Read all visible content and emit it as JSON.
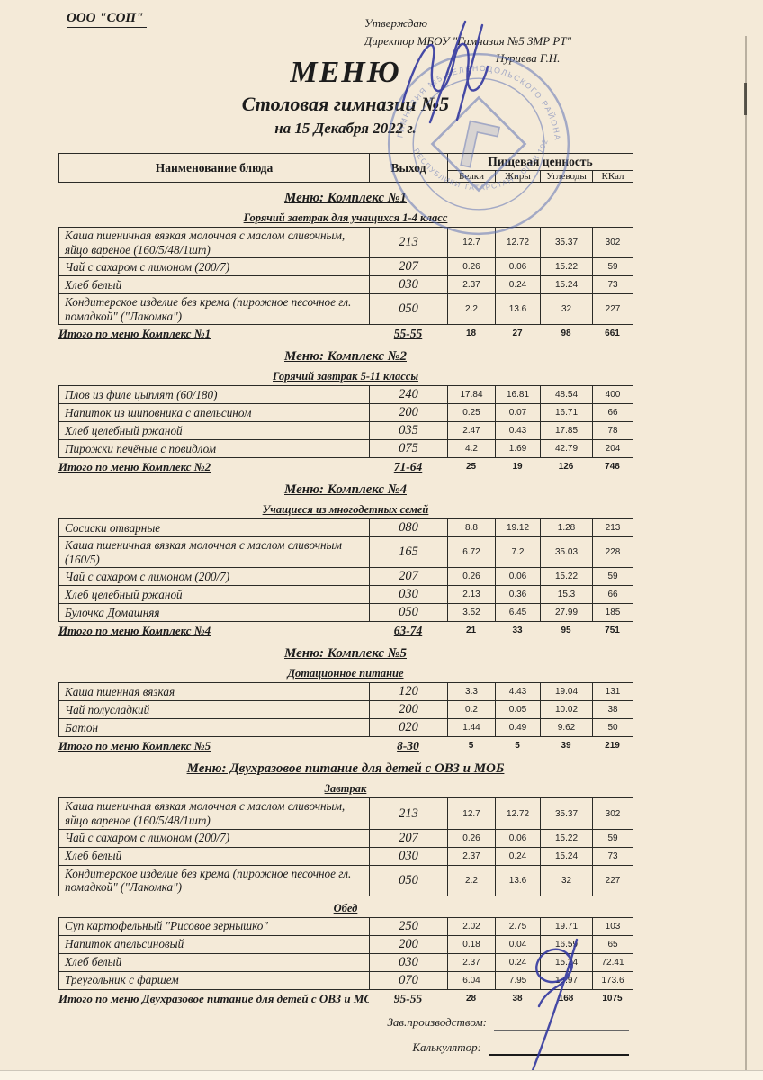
{
  "page": {
    "org": "ООО \"СОП\"",
    "approve_line1": "Утверждаю",
    "approve_line2": "Директор МБОУ \"Гимназия №5 ЗМР РТ\"",
    "approve_name": "Нуриева Г.Н.",
    "title": "МЕНЮ",
    "subtitle": "Столовая гимназии №5",
    "date_line": "на 15 Декабря 2022 г."
  },
  "table_header": {
    "name": "Наименование блюда",
    "output": "Выход",
    "nutrition": "Пищевая ценность",
    "cols": [
      "Белки",
      "Жиры",
      "Углеводы",
      "ККал"
    ]
  },
  "sections": [
    {
      "title": "Меню: Комплекс №1",
      "groups": [
        {
          "subtitle": "Горячий завтрак для учащихся 1-4 класс",
          "rows": [
            {
              "name": "Каша пшеничная вязкая молочная с маслом сливочным, яйцо вареное  (160/5/48/1шт)",
              "output": "213",
              "values": [
                "12.7",
                "12.72",
                "35.37",
                "302"
              ]
            },
            {
              "name": "Чай с сахаром с лимоном (200/7)",
              "output": "207",
              "values": [
                "0.26",
                "0.06",
                "15.22",
                "59"
              ]
            },
            {
              "name": "Хлеб белый",
              "output": "030",
              "values": [
                "2.37",
                "0.24",
                "15.24",
                "73"
              ]
            },
            {
              "name": "Кондитерское изделие без крема (пирожное песочное гл. помадкой\" (\"Лакомка\")",
              "output": "050",
              "values": [
                "2.2",
                "13.6",
                "32",
                "227"
              ]
            }
          ]
        }
      ],
      "total": {
        "label": "Итого по меню Комплекс №1",
        "output": "55-55",
        "values": [
          "18",
          "27",
          "98",
          "661"
        ]
      }
    },
    {
      "title": "Меню: Комплекс №2",
      "groups": [
        {
          "subtitle": "Горячий завтрак 5-11 классы",
          "rows": [
            {
              "name": "Плов из филе цыплят (60/180)",
              "output": "240",
              "values": [
                "17.84",
                "16.81",
                "48.54",
                "400"
              ]
            },
            {
              "name": "Напиток из шиповника с апельсином",
              "output": "200",
              "values": [
                "0.25",
                "0.07",
                "16.71",
                "66"
              ]
            },
            {
              "name": "Хлеб  целебный ржаной",
              "output": "035",
              "values": [
                "2.47",
                "0.43",
                "17.85",
                "78"
              ]
            },
            {
              "name": "Пирожки печёные с повидлом",
              "output": "075",
              "values": [
                "4.2",
                "1.69",
                "42.79",
                "204"
              ]
            }
          ]
        }
      ],
      "total": {
        "label": "Итого по меню Комплекс №2",
        "output": "71-64",
        "values": [
          "25",
          "19",
          "126",
          "748"
        ]
      }
    },
    {
      "title": "Меню: Комплекс №4",
      "groups": [
        {
          "subtitle": "Учащиеся из многодетных семей",
          "rows": [
            {
              "name": "Сосиски  отварные",
              "output": "080",
              "values": [
                "8.8",
                "19.12",
                "1.28",
                "213"
              ]
            },
            {
              "name": "Каша пшеничная вязкая молочная с маслом сливочным (160/5)",
              "output": "165",
              "values": [
                "6.72",
                "7.2",
                "35.03",
                "228"
              ]
            },
            {
              "name": "Чай с сахаром с лимоном (200/7)",
              "output": "207",
              "values": [
                "0.26",
                "0.06",
                "15.22",
                "59"
              ]
            },
            {
              "name": "Хлеб  целебный ржаной",
              "output": "030",
              "values": [
                "2.13",
                "0.36",
                "15.3",
                "66"
              ]
            },
            {
              "name": "Булочка Домашняя",
              "output": "050",
              "values": [
                "3.52",
                "6.45",
                "27.99",
                "185"
              ]
            }
          ]
        }
      ],
      "total": {
        "label": "Итого по меню Комплекс №4",
        "output": "63-74",
        "values": [
          "21",
          "33",
          "95",
          "751"
        ]
      }
    },
    {
      "title": "Меню: Комплекс №5",
      "groups": [
        {
          "subtitle": "Дотационное питание",
          "rows": [
            {
              "name": "Каша пшенная вязкая",
              "output": "120",
              "values": [
                "3.3",
                "4.43",
                "19.04",
                "131"
              ]
            },
            {
              "name": "Чай полусладкий",
              "output": "200",
              "values": [
                "0.2",
                "0.05",
                "10.02",
                "38"
              ]
            },
            {
              "name": "Батон",
              "output": "020",
              "values": [
                "1.44",
                "0.49",
                "9.62",
                "50"
              ]
            }
          ]
        }
      ],
      "total": {
        "label": "Итого по меню Комплекс №5",
        "output": "8-30",
        "values": [
          "5",
          "5",
          "39",
          "219"
        ]
      }
    },
    {
      "title": "Меню: Двухразовое питание для детей с ОВЗ и МОБ",
      "groups": [
        {
          "subtitle": "Завтрак",
          "rows": [
            {
              "name": "Каша пшеничная вязкая молочная с маслом сливочным, яйцо вареное  (160/5/48/1шт)",
              "output": "213",
              "values": [
                "12.7",
                "12.72",
                "35.37",
                "302"
              ]
            },
            {
              "name": "Чай с сахаром с лимоном (200/7)",
              "output": "207",
              "values": [
                "0.26",
                "0.06",
                "15.22",
                "59"
              ]
            },
            {
              "name": "Хлеб белый",
              "output": "030",
              "values": [
                "2.37",
                "0.24",
                "15.24",
                "73"
              ]
            },
            {
              "name": "Кондитерское изделие без крема (пирожное песочное гл. помадкой\" (\"Лакомка\")",
              "output": "050",
              "values": [
                "2.2",
                "13.6",
                "32",
                "227"
              ]
            }
          ]
        },
        {
          "subtitle": "Обед",
          "rows": [
            {
              "name": "Суп картофельный \"Рисовое зернышко\"",
              "output": "250",
              "values": [
                "2.02",
                "2.75",
                "19.71",
                "103"
              ]
            },
            {
              "name": "Напиток апельсиновый",
              "output": "200",
              "values": [
                "0.18",
                "0.04",
                "16.59",
                "65"
              ]
            },
            {
              "name": "Хлеб белый",
              "output": "030",
              "values": [
                "2.37",
                "0.24",
                "15.24",
                "72.41"
              ]
            },
            {
              "name": "Треугольник с фаршем",
              "output": "070",
              "values": [
                "6.04",
                "7.95",
                "18.97",
                "173.6"
              ]
            }
          ]
        }
      ],
      "total": {
        "label": "Итого по меню Двухразовое питание для детей с ОВЗ и МОБ",
        "output": "95-55",
        "values": [
          "28",
          "38",
          "168",
          "1075"
        ]
      }
    }
  ],
  "footer": {
    "manager_label": "Зав.производством:",
    "calculator_label": "Калькулятор:"
  },
  "stamp": {
    "arc_top": "ГИМНАЗИЯ №5 ЗЕЛЕНОДОЛЬСКОГО РАЙОНА",
    "arc_bottom": "РЕСПУБЛИКИ ТАТАРСТАН • ОГРН 1021606",
    "center_mark": "Г5"
  },
  "colors": {
    "paper": "#f4ead8",
    "ink": "#1c1c1c",
    "stamp_blue": "#5a6fb5",
    "signature_blue": "#3338a0"
  }
}
